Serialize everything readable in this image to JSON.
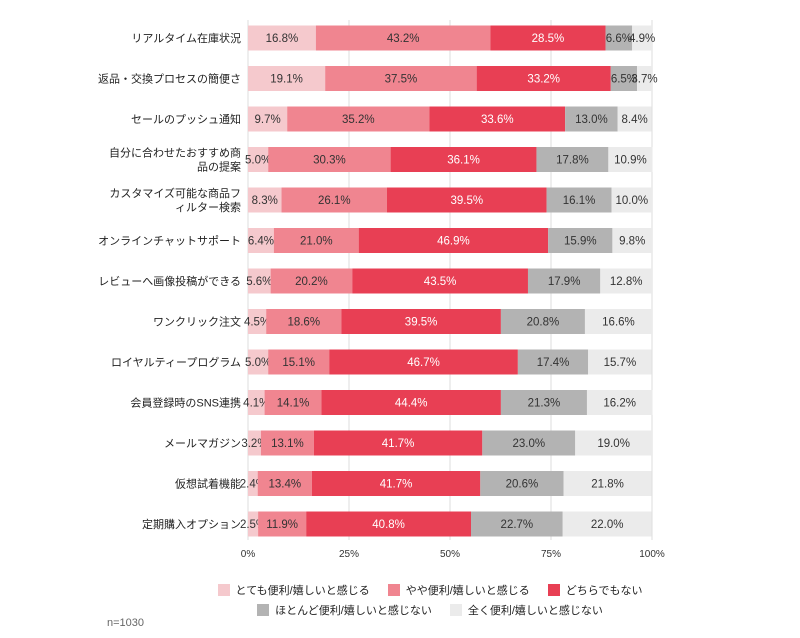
{
  "chart_data": {
    "type": "bar",
    "orientation": "horizontal-stacked-100",
    "categories": [
      "リアルタイム在庫状況",
      "返品・交換プロセスの簡便さ",
      "セールのプッシュ通知",
      "自分に合わせたおすすめ商品の提案",
      "カスタマイズ可能な商品フィルター検索",
      "オンラインチャットサポート",
      "レビューへ画像投稿ができる",
      "ワンクリック注文",
      "ロイヤルティープログラム",
      "会員登録時のSNS連携",
      "メールマガジン",
      "仮想試着機能",
      "定期購入オプション"
    ],
    "series": [
      {
        "name": "とても便利/嬉しいと感じる",
        "color": "#f5c9cd",
        "values": [
          16.8,
          19.1,
          9.7,
          5.0,
          8.3,
          6.4,
          5.6,
          4.5,
          5.0,
          4.1,
          3.2,
          2.4,
          2.5
        ]
      },
      {
        "name": "やや便利/嬉しいと感じる",
        "color": "#f08590",
        "values": [
          43.2,
          37.5,
          35.2,
          30.3,
          26.1,
          21.0,
          20.2,
          18.6,
          15.1,
          14.1,
          13.1,
          13.4,
          11.9
        ]
      },
      {
        "name": "どちらでもない",
        "color": "#e83f54",
        "values": [
          28.5,
          33.2,
          33.6,
          36.1,
          39.5,
          46.9,
          43.5,
          39.5,
          46.7,
          44.4,
          41.7,
          41.7,
          40.8
        ]
      },
      {
        "name": "ほとんど便利/嬉しいと感じない",
        "color": "#b3b3b3",
        "values": [
          6.6,
          6.5,
          13.0,
          17.8,
          16.1,
          15.9,
          17.9,
          20.8,
          17.4,
          21.3,
          23.0,
          20.6,
          22.7
        ]
      },
      {
        "name": "全く便利/嬉しいと感じない",
        "color": "#ebebeb",
        "values": [
          4.9,
          3.7,
          8.4,
          10.9,
          10.0,
          9.8,
          12.8,
          16.6,
          15.7,
          16.2,
          19.0,
          21.8,
          22.0
        ]
      }
    ],
    "xlim": [
      0,
      100
    ],
    "xticks": [
      "0%",
      "25%",
      "50%",
      "75%",
      "100%"
    ],
    "legend_position": "bottom",
    "grid": true
  },
  "footnote": "n=1030"
}
